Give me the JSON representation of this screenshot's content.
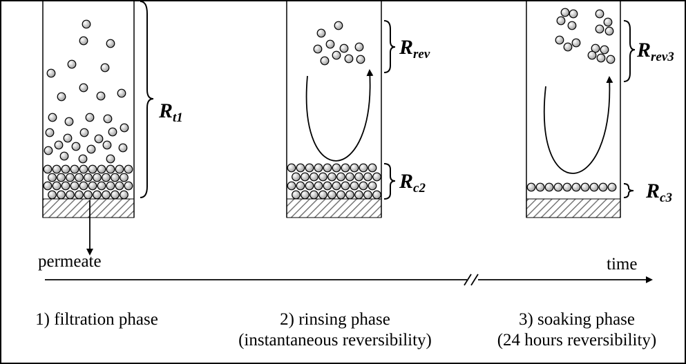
{
  "permeate_label": "permeate",
  "time_label": "time",
  "resistances": [
    {
      "symbol": "R",
      "subscript": "t1"
    },
    {
      "symbol": "R",
      "subscript": "rev"
    },
    {
      "symbol": "R",
      "subscript": "c2"
    },
    {
      "symbol": "R",
      "subscript": "rev3"
    },
    {
      "symbol": "R",
      "subscript": "c3"
    }
  ],
  "phases": [
    {
      "title": "1) filtration phase"
    },
    {
      "title": "2) rinsing phase",
      "note": "(instantaneous reversibility)"
    },
    {
      "title": "3) soaking phase",
      "note": "(24 hours reversibility)"
    }
  ]
}
